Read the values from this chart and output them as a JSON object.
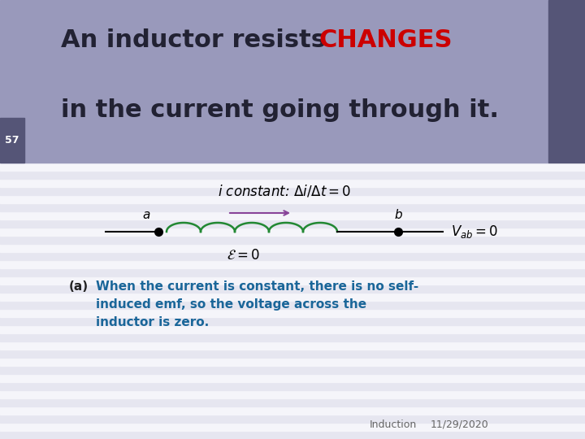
{
  "slide_bg": "#ffffff",
  "title_bg": "#9999bb",
  "slide_num_bg": "#555577",
  "title_color": "#222233",
  "changes_color": "#cc0000",
  "title_text1": "An inductor resists ",
  "title_changes": "CHANGES",
  "title_text2": "in the current going through it.",
  "slide_num": "57",
  "stripe_color": "#e6e6f0",
  "stripe_bg": "#f5f5fa",
  "body_a_color": "#222222",
  "body_color": "#1a6699",
  "footer_color": "#666666",
  "footer_left": "Induction",
  "footer_right": "11/29/2020",
  "coil_color": "#228833",
  "arrow_color": "#884499",
  "title_fontsize": 22,
  "body_fontsize": 11,
  "circuit_fontsize": 11
}
